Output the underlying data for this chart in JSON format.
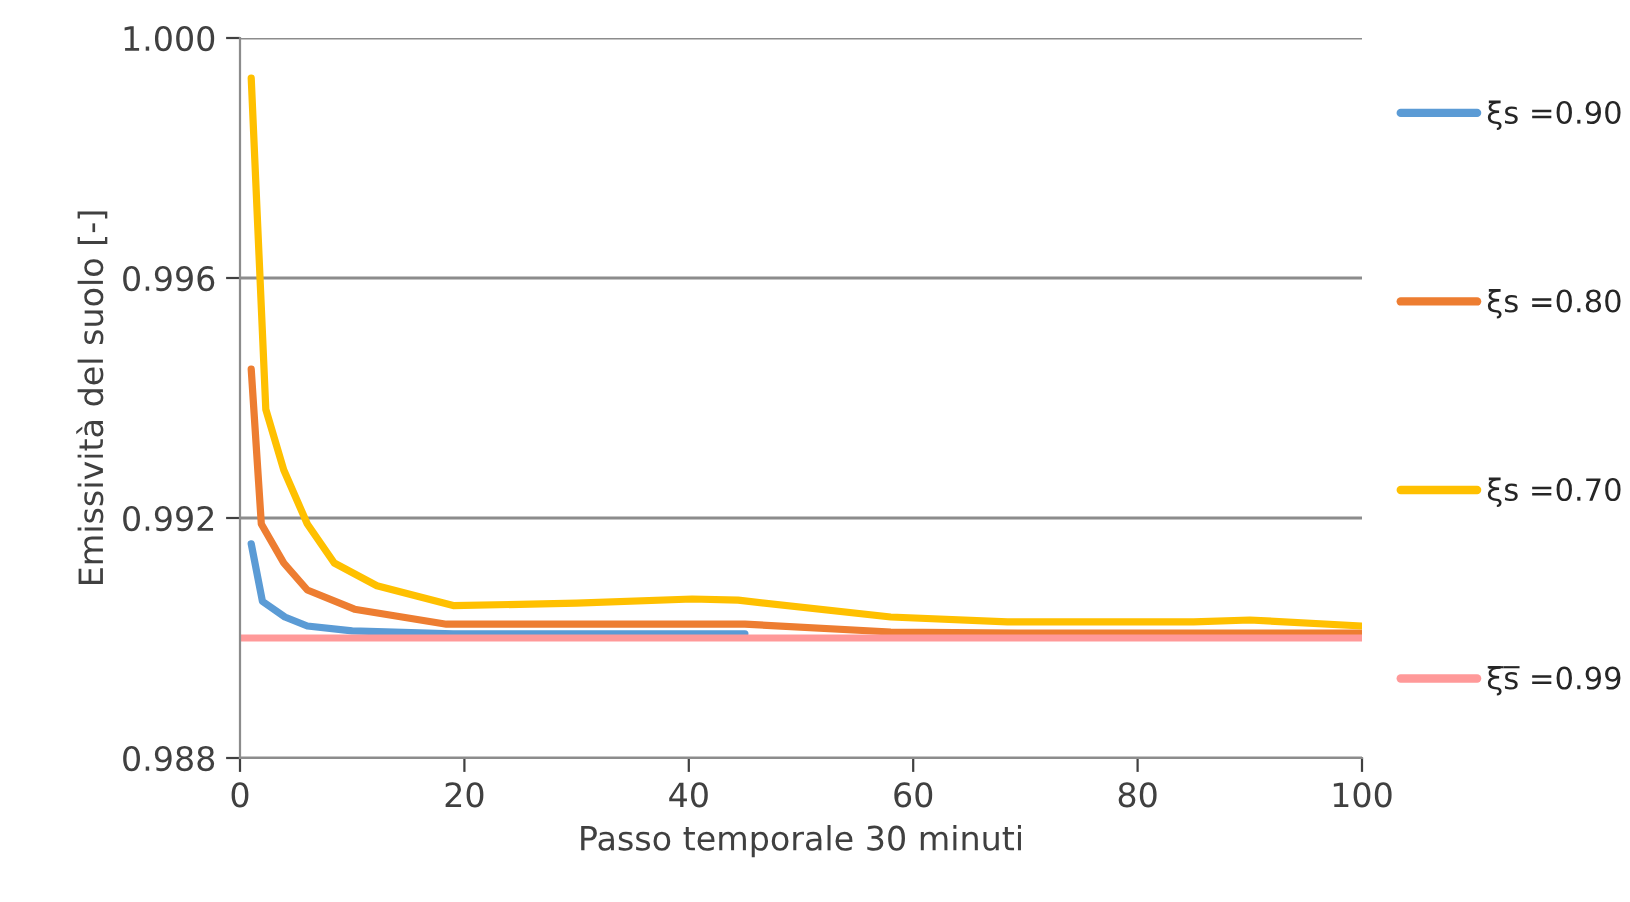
{
  "chart_data": {
    "type": "line",
    "xlabel": "Passo temporale 30 minuti",
    "ylabel": "Emissività del suolo [-]",
    "xlim": [
      0,
      100
    ],
    "ylim": [
      0.988,
      1.0
    ],
    "xticks": [
      0,
      20,
      40,
      60,
      80,
      100
    ],
    "yticks": [
      0.988,
      0.992,
      0.996,
      {
        "value": 1.0,
        "label": "1.000"
      }
    ],
    "grid": "y",
    "legend": "right",
    "marker": "none",
    "line_style": "solid",
    "series": [
      {
        "name": "ξs =0.90",
        "color": "#5b9bd5",
        "x": [
          1,
          2,
          4,
          6,
          10,
          19,
          30,
          45
        ],
        "values": [
          0.99157,
          0.99061,
          0.99035,
          0.9902,
          0.99012,
          0.99007,
          0.99007,
          0.99007
        ]
      },
      {
        "name": "ξs =0.80",
        "color": "#ed7d31",
        "x": [
          1,
          1.9,
          3.9,
          6,
          10.2,
          18.4,
          30,
          45,
          58,
          70,
          85,
          100
        ],
        "values": [
          0.99448,
          0.9919,
          0.99125,
          0.9908,
          0.99048,
          0.99023,
          0.99023,
          0.99023,
          0.9901,
          0.99008,
          0.99008,
          0.99008
        ]
      },
      {
        "name": "ξs =0.70",
        "color": "#ffc000",
        "x": [
          1,
          2.3,
          3.9,
          6,
          8.4,
          12.2,
          19,
          30,
          40.3,
          44.4,
          58,
          68.4,
          85,
          90,
          100
        ],
        "values": [
          0.99933,
          0.99381,
          0.9928,
          0.9919,
          0.99125,
          0.99087,
          0.99054,
          0.99058,
          0.99065,
          0.99063,
          0.99035,
          0.99027,
          0.99027,
          0.9903,
          0.9902
        ]
      },
      {
        "name": "ξ̅s̅ =0.99",
        "color": "#ff9999",
        "x": [
          0,
          100
        ],
        "values": [
          0.99,
          0.99
        ]
      }
    ]
  }
}
